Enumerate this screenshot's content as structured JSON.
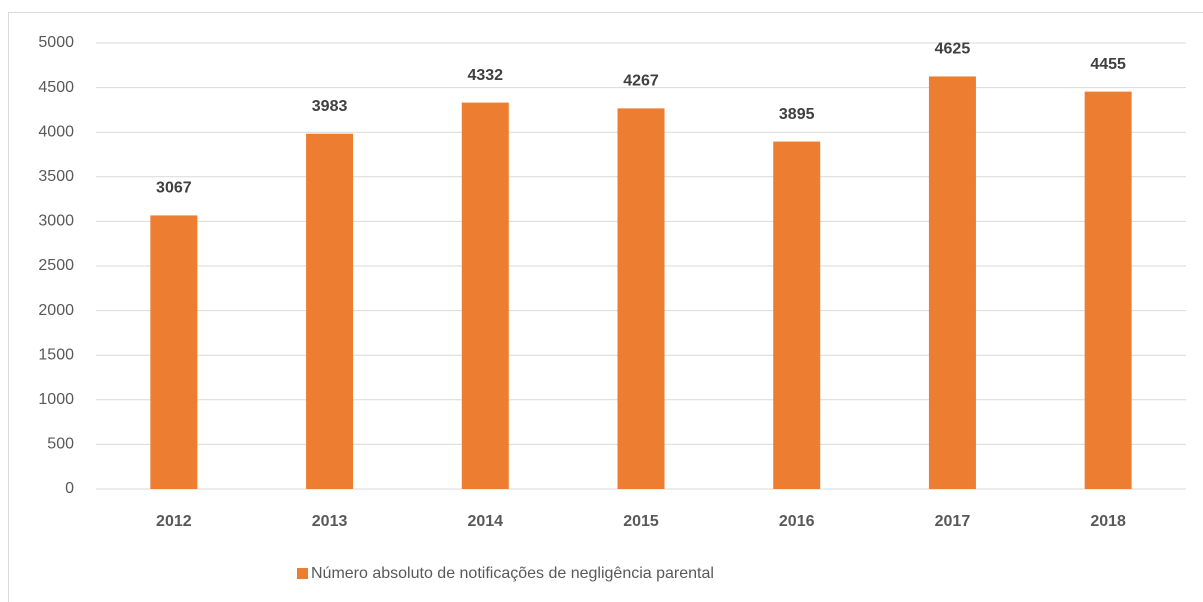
{
  "chart_data": {
    "type": "bar",
    "categories": [
      "2012",
      "2013",
      "2014",
      "2015",
      "2016",
      "2017",
      "2018"
    ],
    "series": [
      {
        "name": "Número absoluto de notificações de negligência parental",
        "color": "#ed7d31",
        "values": [
          3067,
          3983,
          4332,
          4267,
          3895,
          4625,
          4455
        ]
      }
    ],
    "ylim": [
      0,
      5000
    ],
    "yticks": [
      0,
      500,
      1000,
      1500,
      2000,
      2500,
      3000,
      3500,
      4000,
      4500,
      5000
    ],
    "grid": true,
    "legend": "bottom",
    "data_labels": true
  }
}
